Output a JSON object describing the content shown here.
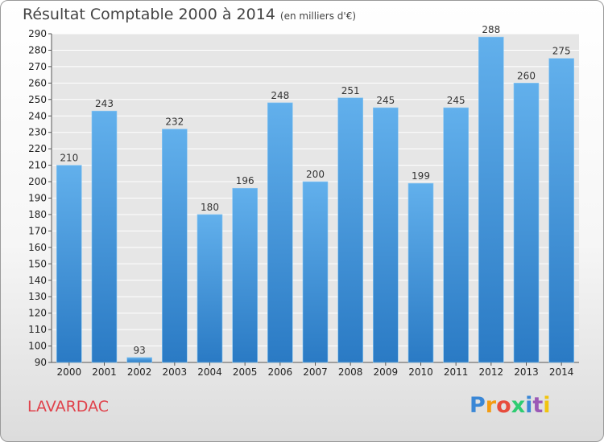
{
  "title": "Résultat Comptable 2000 à 2014",
  "subtitle": "(en milliers d'€)",
  "location": "LAVARDAC",
  "logo": {
    "letters": [
      "P",
      "r",
      "o",
      "x",
      "i",
      "t",
      "i"
    ],
    "colors": [
      "#3a87d6",
      "#f39c12",
      "#e74c3c",
      "#2ecc71",
      "#3a87d6",
      "#9b59b6",
      "#f1c40f"
    ]
  },
  "colors": {
    "bar_light": "#62b0ec",
    "bar_dark": "#2a7ac4",
    "grid": "#ffffff",
    "plot_bg": "#e6e6e6"
  },
  "chart_data": {
    "type": "bar",
    "title": "Résultat Comptable 2000 à 2014",
    "subtitle": "(en milliers d'€)",
    "xlabel": "",
    "ylabel": "",
    "categories": [
      "2000",
      "2001",
      "2002",
      "2003",
      "2004",
      "2005",
      "2006",
      "2007",
      "2008",
      "2009",
      "2010",
      "2011",
      "2012",
      "2013",
      "2014"
    ],
    "values": [
      210,
      243,
      93,
      232,
      180,
      196,
      248,
      200,
      251,
      245,
      199,
      245,
      288,
      260,
      275
    ],
    "ylim": [
      90,
      290
    ],
    "ytick_step": 10,
    "grid": true
  }
}
